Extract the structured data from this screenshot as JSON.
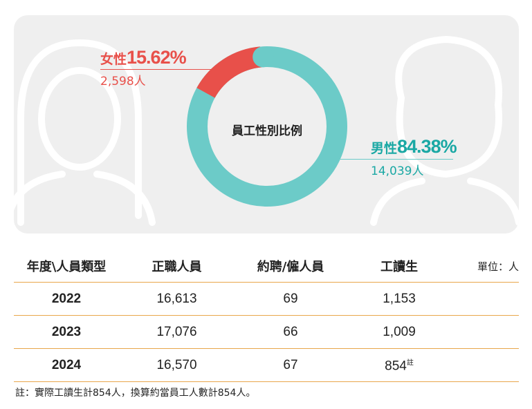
{
  "chart_data": {
    "type": "pie",
    "title": "員工性別比例",
    "series": [
      {
        "name": "女性",
        "percent_label": "15.62%",
        "value": 15.62,
        "count_label": "2,598人",
        "color": "#e8504a"
      },
      {
        "name": "男性",
        "percent_label": "84.38%",
        "value": 84.38,
        "count_label": "14,039人",
        "color": "#6ccbc8"
      }
    ]
  },
  "table": {
    "headers": [
      "年度\\人員類型",
      "正職人員",
      "約聘/僱人員",
      "工讀生"
    ],
    "unit": "單位：人",
    "rows": [
      {
        "year": "2022",
        "fulltime": "16,613",
        "contract": "69",
        "parttime": "1,153",
        "sup": ""
      },
      {
        "year": "2023",
        "fulltime": "17,076",
        "contract": "66",
        "parttime": "1,009",
        "sup": ""
      },
      {
        "year": "2024",
        "fulltime": "16,570",
        "contract": "67",
        "parttime": "854",
        "sup": "註"
      }
    ]
  },
  "footnote": "註：實際工讀生計854人，換算約當員工人數計854人。"
}
